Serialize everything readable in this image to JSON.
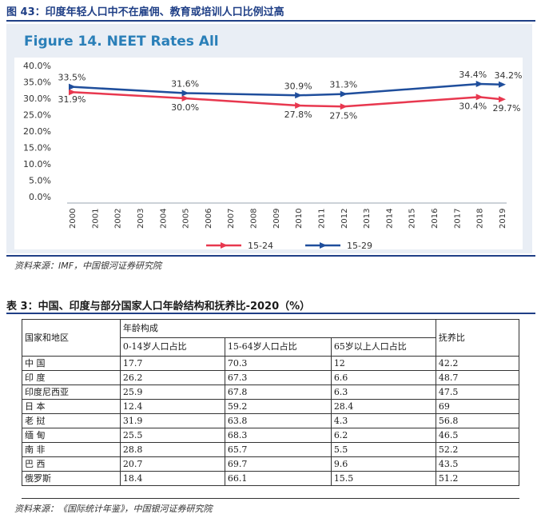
{
  "figure_caption": "图 43：印度年轻人口中不在雇佣、教育或培训人口比例过高",
  "chart_data": {
    "type": "line",
    "title": "Figure 14. NEET Rates All",
    "xlabel": "",
    "ylabel": "",
    "x": [
      "2000",
      "2001",
      "2002",
      "2003",
      "2004",
      "2005",
      "2006",
      "2007",
      "2008",
      "2009",
      "2010",
      "2011",
      "2012",
      "2013",
      "2014",
      "2015",
      "2016",
      "2017",
      "2018",
      "2019"
    ],
    "ylim": [
      0,
      40
    ],
    "yticks": [
      "0.0%",
      "5.0%",
      "10.0%",
      "15.0%",
      "20.0%",
      "25.0%",
      "30.0%",
      "35.0%",
      "40.0%"
    ],
    "grid": false,
    "legend": "bottom-center",
    "series": [
      {
        "name": "15-24",
        "color": "#e8384f",
        "points": [
          {
            "x": "2000",
            "y": 31.9
          },
          {
            "x": "2005",
            "y": 30.0
          },
          {
            "x": "2010",
            "y": 27.8
          },
          {
            "x": "2012",
            "y": 27.5
          },
          {
            "x": "2018",
            "y": 30.4
          },
          {
            "x": "2019",
            "y": 29.7
          }
        ],
        "labels": [
          "31.9%",
          "30.0%",
          "27.8%",
          "27.5%",
          "30.4%",
          "29.7%"
        ]
      },
      {
        "name": "15-29",
        "color": "#1f4e9c",
        "points": [
          {
            "x": "2000",
            "y": 33.5
          },
          {
            "x": "2005",
            "y": 31.6
          },
          {
            "x": "2010",
            "y": 30.9
          },
          {
            "x": "2012",
            "y": 31.3
          },
          {
            "x": "2018",
            "y": 34.4
          },
          {
            "x": "2019",
            "y": 34.2
          }
        ],
        "labels": [
          "33.5%",
          "31.6%",
          "30.9%",
          "31.3%",
          "34.4%",
          "34.2%"
        ]
      }
    ]
  },
  "figure_source": "资料来源：IMF，中国银河证券研究院",
  "table": {
    "title": "表 3：中国、印度与部分国家人口年龄结构和抚养比-2020（%）",
    "header_region": "国家和地区",
    "header_group": "年龄构成",
    "header_cols": [
      "0-14岁人口占比",
      "15-64岁人口占比",
      "65岁以上人口占比"
    ],
    "header_ratio": "抚养比",
    "rows": [
      [
        "中  国",
        "17.7",
        "70.3",
        "12",
        "42.2"
      ],
      [
        "印  度",
        "26.2",
        "67.3",
        "6.6",
        "48.7"
      ],
      [
        "印度尼西亚",
        "25.9",
        "67.8",
        "6.3",
        "47.5"
      ],
      [
        "日  本",
        "12.4",
        "59.2",
        "28.4",
        "69"
      ],
      [
        "老  挝",
        "31.9",
        "63.8",
        "4.3",
        "56.8"
      ],
      [
        "缅  甸",
        "25.5",
        "68.3",
        "6.2",
        "46.5"
      ],
      [
        "南  非",
        "28.8",
        "65.7",
        "5.5",
        "52.2"
      ],
      [
        "巴  西",
        "20.7",
        "69.7",
        "9.6",
        "43.5"
      ],
      [
        "俄罗斯",
        "18.4",
        "66.1",
        "15.5",
        "51.2"
      ]
    ],
    "source": "资料来源：《国际统计年鉴》，中国银河证券研究院"
  }
}
